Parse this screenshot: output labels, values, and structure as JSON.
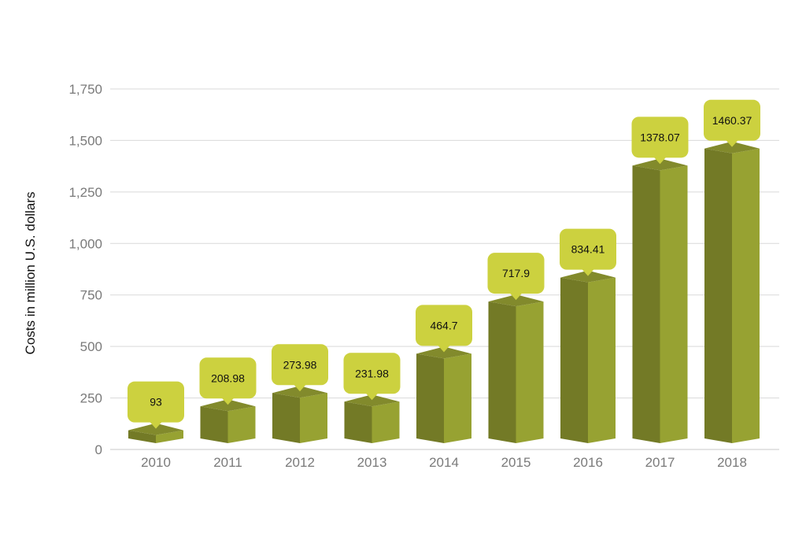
{
  "chart_data": {
    "type": "bar",
    "categories": [
      "2010",
      "2011",
      "2012",
      "2013",
      "2014",
      "2015",
      "2016",
      "2017",
      "2018"
    ],
    "values": [
      93,
      208.98,
      273.98,
      231.98,
      464.7,
      717.9,
      834.41,
      1378.07,
      1460.37
    ],
    "data_labels": [
      "93",
      "208.98",
      "273.98",
      "231.98",
      "464.7",
      "717.9",
      "834.41",
      "1378.07",
      "1460.37"
    ],
    "ylabel": "Costs in million U.S. dollars",
    "xlabel": "",
    "ylim": [
      0,
      1750
    ],
    "yticks": [
      0,
      250,
      500,
      750,
      1000,
      1250,
      1500,
      1750
    ],
    "ytick_labels": [
      "0",
      "250",
      "500",
      "750",
      "1,000",
      "1,250",
      "1,500",
      "1,750"
    ],
    "grid": true,
    "legend": "none",
    "colors": {
      "bar_front": "#737a26",
      "bar_side": "#97a232",
      "bar_top": "#828a2c",
      "callout": "#ccd13f",
      "grid": "#d9d9d9"
    }
  }
}
